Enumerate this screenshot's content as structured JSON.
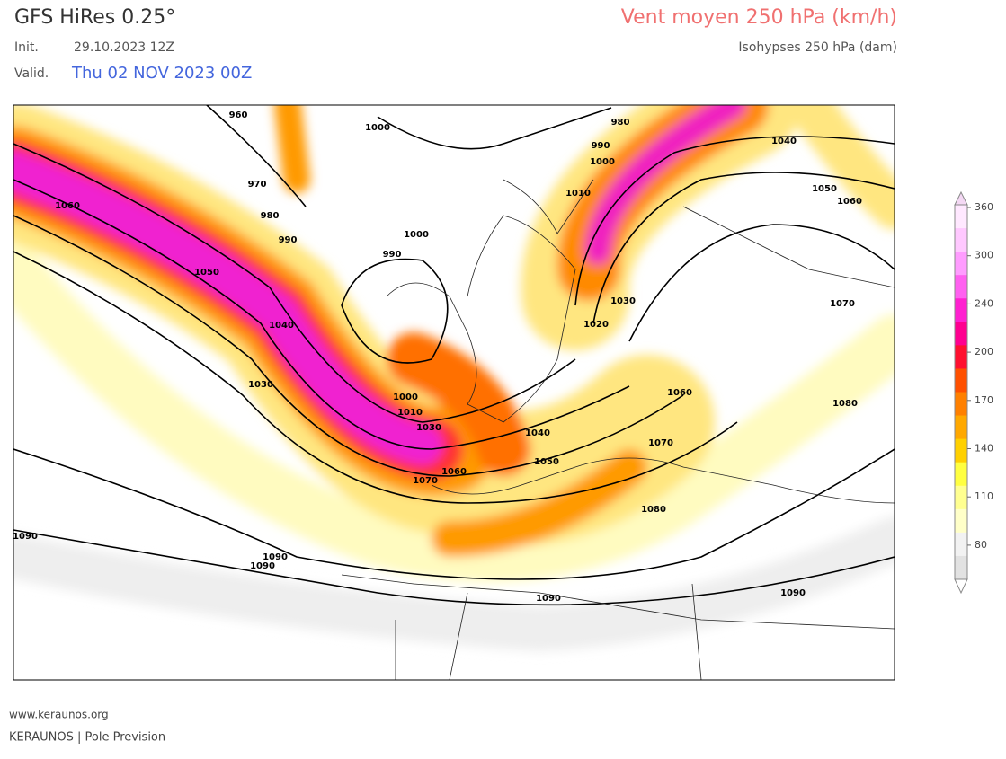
{
  "header": {
    "model": "GFS HiRes 0.25°",
    "init_label": "Init.",
    "init": "29.10.2023 12Z",
    "valid_label": "Valid.",
    "valid": "Thu 02 NOV 2023 00Z",
    "title": "Vent moyen 250 hPa (km/h)",
    "subtitle": "Isohypses 250 hPa (dam)"
  },
  "colorbar": {
    "ticks": [
      "360",
      "300",
      "240",
      "200",
      "170",
      "140",
      "110",
      "80"
    ]
  },
  "contour_labels": [
    "960",
    "970",
    "980",
    "990",
    "1000",
    "980",
    "990",
    "1000",
    "1010",
    "1040",
    "1050",
    "1060",
    "1060",
    "1050",
    "1040",
    "1030",
    "1000",
    "990",
    "1030",
    "1020",
    "1070",
    "1060",
    "1080",
    "1000",
    "1010",
    "1030",
    "1040",
    "1070",
    "1050",
    "1060",
    "1070",
    "1080",
    "1090",
    "1090",
    "1090",
    "1090",
    "1090"
  ],
  "footer": {
    "url": "www.keraunos.org",
    "credit": "KERAUNOS | Pole Prevision"
  }
}
